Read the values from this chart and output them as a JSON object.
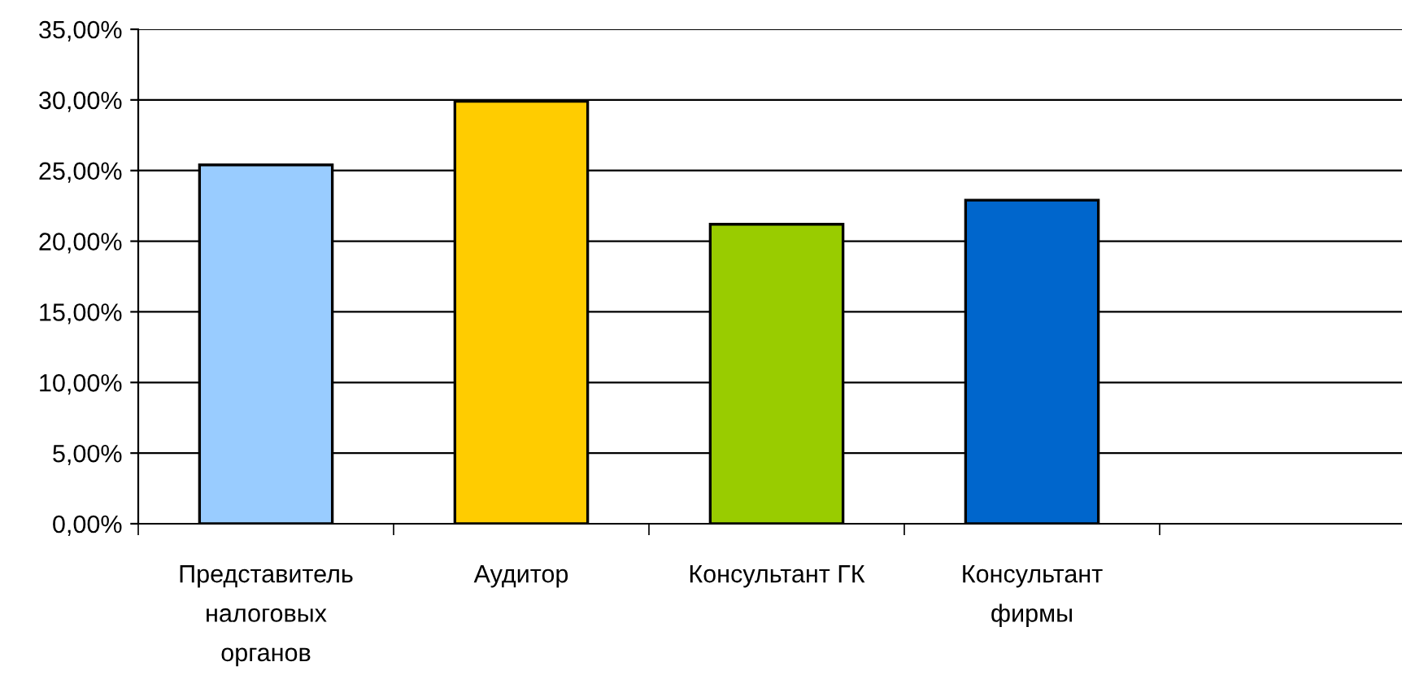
{
  "chart_data": {
    "type": "bar",
    "categories": [
      "Представитель\nналоговых\nорганов",
      "Аудитор",
      "Консультант ГК",
      "Консультант\nфирмы",
      null
    ],
    "values": [
      25.4,
      29.9,
      21.2,
      22.9,
      null
    ],
    "colors": [
      "#99ccff",
      "#ffcc00",
      "#99cc00",
      "#0066cc",
      "#ffffff"
    ],
    "ylim": [
      0,
      35
    ],
    "yticks": [
      {
        "value": 0,
        "label": "0,00%"
      },
      {
        "value": 5,
        "label": "5,00%"
      },
      {
        "value": 10,
        "label": "10,00%"
      },
      {
        "value": 15,
        "label": "15,00%"
      },
      {
        "value": 20,
        "label": "20,00%"
      },
      {
        "value": 25,
        "label": "25,00%"
      },
      {
        "value": 30,
        "label": "30,00%"
      },
      {
        "value": 35,
        "label": "35,00%"
      }
    ],
    "grid": "y",
    "legend": false
  }
}
